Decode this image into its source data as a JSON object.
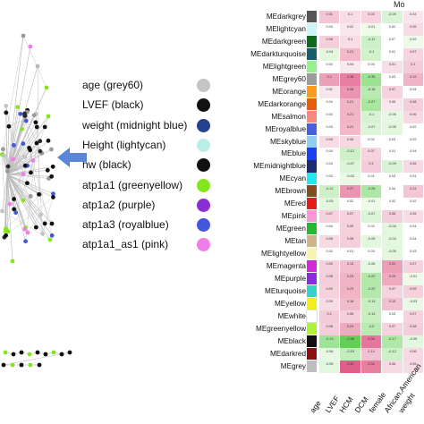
{
  "right_title": "Mo",
  "legend": [
    {
      "label": "age (grey60)",
      "color": "#c4c4c4"
    },
    {
      "label": "LVEF (black)",
      "color": "#111111"
    },
    {
      "label": "weight (midnight blue)",
      "color": "#23418f"
    },
    {
      "label": "Height (lightycan)",
      "color": "#b9efe6"
    },
    {
      "label": "hw (black)",
      "color": "#111111"
    },
    {
      "label": "atp1a1 (greenyellow)",
      "color": "#86e61e"
    },
    {
      "label": "atp1a2 (purple)",
      "color": "#8a2fd2"
    },
    {
      "label": "atp1a3 (royalblue)",
      "color": "#4457dc"
    },
    {
      "label": "atp1a1_as1 (pink)",
      "color": "#f07ee8"
    }
  ],
  "modules": [
    {
      "name": "MEdarkgrey",
      "color": "#555555"
    },
    {
      "name": "MElightcyan",
      "color": "#cdf5f7"
    },
    {
      "name": "MEdarkgreen",
      "color": "#0d6b1e"
    },
    {
      "name": "MEdarkturquoise",
      "color": "#17606a"
    },
    {
      "name": "MElightgreen",
      "color": "#95f08e"
    },
    {
      "name": "MEgrey60",
      "color": "#9c9c9c"
    },
    {
      "name": "MEorange",
      "color": "#ff9d1a"
    },
    {
      "name": "MEdarkorange",
      "color": "#e85d0c"
    },
    {
      "name": "MEsalmon",
      "color": "#f7897a"
    },
    {
      "name": "MEroyalblue",
      "color": "#4660e0"
    },
    {
      "name": "MEskyblue",
      "color": "#8fd0f2"
    },
    {
      "name": "MEblue",
      "color": "#1b3ff2"
    },
    {
      "name": "MEmidnightblue",
      "color": "#1c2a73"
    },
    {
      "name": "MEcyan",
      "color": "#22e6f0"
    },
    {
      "name": "MEbrown",
      "color": "#8b4a1e"
    },
    {
      "name": "MEred",
      "color": "#e61b1b"
    },
    {
      "name": "MEpink",
      "color": "#f59ad6"
    },
    {
      "name": "MEgreen",
      "color": "#24b92f"
    },
    {
      "name": "MEtan",
      "color": "#d2b48c"
    },
    {
      "name": "MElightyellow",
      "color": "#f6f3b4"
    },
    {
      "name": "MEmagenta",
      "color": "#d22ad2"
    },
    {
      "name": "MEpurple",
      "color": "#8a2be2"
    },
    {
      "name": "MEturquoise",
      "color": "#36d2c6"
    },
    {
      "name": "MEyellow",
      "color": "#f2ee1e"
    },
    {
      "name": "MEwhite",
      "color": "#ffffff"
    },
    {
      "name": "MEgreenyellow",
      "color": "#aef23a"
    },
    {
      "name": "MEblack",
      "color": "#111111"
    },
    {
      "name": "MEdarkred",
      "color": "#8b1010"
    },
    {
      "name": "MEgrey",
      "color": "#bdbdbd"
    }
  ],
  "traits": [
    "age",
    "LVEF",
    "HCM",
    "DCM",
    "female",
    "African.American",
    "weight"
  ],
  "heatmap_cells": [
    [
      {
        "v": "0.01",
        "c": "#f4c6d4"
      },
      {
        "v": "0.1",
        "c": "#f8dde6"
      },
      {
        "v": "0.03",
        "c": "#f6d3de"
      },
      {
        "v": "-0.09",
        "c": "#d9f3d6"
      },
      {
        "v": "0.03",
        "c": "#f9e6ec"
      }
    ],
    [
      {
        "v": "0.03",
        "c": "#ffffff"
      },
      {
        "v": "0.02",
        "c": "#f9e7ee"
      },
      {
        "v": "-0.01",
        "c": "#eefbe9"
      },
      {
        "v": "0.02",
        "c": "#ffffff"
      },
      {
        "v": "0.05",
        "c": "#f7dce5"
      }
    ],
    [
      {
        "v": "0.08",
        "c": "#f5cfdc"
      },
      {
        "v": "0.1",
        "c": "#f8dde6"
      },
      {
        "v": "-0.11",
        "c": "#ccf0c6"
      },
      {
        "v": "0.07",
        "c": "#ffffff"
      },
      {
        "v": "0.02",
        "c": "#eefbe9"
      }
    ],
    [
      {
        "v": "-0.04",
        "c": "#e3f7df"
      },
      {
        "v": "0.21",
        "c": "#f1b9ca"
      },
      {
        "v": "-0.1",
        "c": "#d2f2cc"
      },
      {
        "v": "0.01",
        "c": "#ffffff"
      },
      {
        "v": "0.07",
        "c": "#f6d5df"
      }
    ],
    [
      {
        "v": "0.04",
        "c": "#ffffff"
      },
      {
        "v": "0.04",
        "c": "#f9e8ee"
      },
      {
        "v": "0.03",
        "c": "#ffffff"
      },
      {
        "v": "0.01",
        "c": "#f7dfe7"
      },
      {
        "v": "0.1",
        "c": "#f4ccd9"
      }
    ],
    [
      {
        "v": "0.2",
        "c": "#ee9fb8"
      },
      {
        "v": "0.38",
        "c": "#e97ea2"
      },
      {
        "v": "-0.35",
        "c": "#9ce391"
      },
      {
        "v": "0.03",
        "c": "#ffffff"
      },
      {
        "v": "0.12",
        "c": "#f0b4c6"
      }
    ],
    [
      {
        "v": "0.01",
        "c": "#f9e6ec"
      },
      {
        "v": "0.28",
        "c": "#ec95b2"
      },
      {
        "v": "-0.18",
        "c": "#b8eab1"
      },
      {
        "v": "0.07",
        "c": "#f6d3de"
      },
      {
        "v": "0.04",
        "c": "#ffffff"
      }
    ],
    [
      {
        "v": "0.04",
        "c": "#ffffff"
      },
      {
        "v": "0.21",
        "c": "#f0b5c7"
      },
      {
        "v": "-0.27",
        "c": "#a9e6a0"
      },
      {
        "v": "0.05",
        "c": "#f9e6ec"
      },
      {
        "v": "0.08",
        "c": "#f4cfdb"
      }
    ],
    [
      {
        "v": "0.04",
        "c": "#ffffff"
      },
      {
        "v": "0.21",
        "c": "#f0b5c7"
      },
      {
        "v": "-0.1",
        "c": "#d8f3d3"
      },
      {
        "v": "-0.06",
        "c": "#e6f8e2"
      },
      {
        "v": "0.06",
        "c": "#f7d9e3"
      }
    ],
    [
      {
        "v": "0.03",
        "c": "#ffffff"
      },
      {
        "v": "0.21",
        "c": "#f1b9ca"
      },
      {
        "v": "-0.07",
        "c": "#dcf4d8"
      },
      {
        "v": "-0.05",
        "c": "#e3f7df"
      },
      {
        "v": "0.02",
        "c": "#ffffff"
      }
    ],
    [
      {
        "v": "0.05",
        "c": "#f7dce5"
      },
      {
        "v": "0.06",
        "c": "#f7d8e2"
      },
      {
        "v": "0.02",
        "c": "#ffffff"
      },
      {
        "v": "0.03",
        "c": "#ffffff"
      },
      {
        "v": "0.02",
        "c": "#ffffff"
      }
    ],
    [
      {
        "v": "0.04",
        "c": "#ffffff"
      },
      {
        "v": "-0.12",
        "c": "#cdf0c7"
      },
      {
        "v": "0.07",
        "c": "#f6d3de"
      },
      {
        "v": "0.01",
        "c": "#ffffff"
      },
      {
        "v": "0.04",
        "c": "#ffffff"
      }
    ],
    [
      {
        "v": "0.04",
        "c": "#ffffff"
      },
      {
        "v": "-0.07",
        "c": "#dcf4d8"
      },
      {
        "v": "0.1",
        "c": "#f4ccd9"
      },
      {
        "v": "-0.09",
        "c": "#d9f3d6"
      },
      {
        "v": "0.06",
        "c": "#f7d9e3"
      }
    ],
    [
      {
        "v": "0.03",
        "c": "#ffffff"
      },
      {
        "v": "-0.03",
        "c": "#e9f9e5"
      },
      {
        "v": "0.01",
        "c": "#ffffff"
      },
      {
        "v": "0.03",
        "c": "#ffffff"
      },
      {
        "v": "0.01",
        "c": "#ffffff"
      }
    ],
    [
      {
        "v": "-0.12",
        "c": "#cdf0c7"
      },
      {
        "v": "0.27",
        "c": "#ec95b2"
      },
      {
        "v": "-0.25",
        "c": "#aee7a5"
      },
      {
        "v": "0.04",
        "c": "#ffffff"
      },
      {
        "v": "0.11",
        "c": "#f3c6d4"
      }
    ],
    [
      {
        "v": "-0.05",
        "c": "#e3f7df"
      },
      {
        "v": "0.02",
        "c": "#ffffff"
      },
      {
        "v": "-0.01",
        "c": "#eefbe9"
      },
      {
        "v": "0.02",
        "c": "#ffffff"
      },
      {
        "v": "0.02",
        "c": "#ffffff"
      }
    ],
    [
      {
        "v": "0.07",
        "c": "#f6d3de"
      },
      {
        "v": "0.07",
        "c": "#f6d3de"
      },
      {
        "v": "-0.07",
        "c": "#dcf4d8"
      },
      {
        "v": "0.08",
        "c": "#f4cfdb"
      },
      {
        "v": "0.05",
        "c": "#f7dce5"
      }
    ],
    [
      {
        "v": "0.04",
        "c": "#ffffff"
      },
      {
        "v": "0.09",
        "c": "#f5d1dc"
      },
      {
        "v": "0.02",
        "c": "#ffffff"
      },
      {
        "v": "-0.04",
        "c": "#e3f7df"
      },
      {
        "v": "0.04",
        "c": "#ffffff"
      }
    ],
    [
      {
        "v": "0.06",
        "c": "#f7d9e3"
      },
      {
        "v": "0.08",
        "c": "#f4cfdb"
      },
      {
        "v": "-0.05",
        "c": "#e3f7df"
      },
      {
        "v": "-0.04",
        "c": "#e3f7df"
      },
      {
        "v": "0.04",
        "c": "#ffffff"
      }
    ],
    [
      {
        "v": "0.02",
        "c": "#ffffff"
      },
      {
        "v": "0.01",
        "c": "#ffffff"
      },
      {
        "v": "0.03",
        "c": "#ffffff"
      },
      {
        "v": "-0.05",
        "c": "#e3f7df"
      },
      {
        "v": "0.03",
        "c": "#ffffff"
      }
    ],
    [
      {
        "v": "0.09",
        "c": "#f5d1dc"
      },
      {
        "v": "0.13",
        "c": "#f2bfd0"
      },
      {
        "v": "-0.06",
        "c": "#e6f8e2"
      },
      {
        "v": "0.22",
        "c": "#ee9fb8"
      },
      {
        "v": "0.07",
        "c": "#f6d3de"
      }
    ],
    [
      {
        "v": "0.08",
        "c": "#f4cfdb"
      },
      {
        "v": "0.23",
        "c": "#f0b4c6"
      },
      {
        "v": "-0.22",
        "c": "#b3e8aa"
      },
      {
        "v": "0.19",
        "c": "#efaac0"
      },
      {
        "v": "-0.01",
        "c": "#eefbe9"
      }
    ],
    [
      {
        "v": "0.09",
        "c": "#f5d1dc"
      },
      {
        "v": "0.23",
        "c": "#f0b4c6"
      },
      {
        "v": "-0.22",
        "c": "#b3e8aa"
      },
      {
        "v": "0.07",
        "c": "#f6d3de"
      },
      {
        "v": "0.09",
        "c": "#f5d1dc"
      }
    ],
    [
      {
        "v": "0.05",
        "c": "#f7dce5"
      },
      {
        "v": "0.18",
        "c": "#f1bccc"
      },
      {
        "v": "-0.13",
        "c": "#c8eec1"
      },
      {
        "v": "0.15",
        "c": "#f2c1d1"
      },
      {
        "v": "-0.03",
        "c": "#e9f9e5"
      }
    ],
    [
      {
        "v": "0.1",
        "c": "#f4ccd9"
      },
      {
        "v": "0.08",
        "c": "#f4cfdb"
      },
      {
        "v": "-0.13",
        "c": "#c8eec1"
      },
      {
        "v": "0.03",
        "c": "#ffffff"
      },
      {
        "v": "0.07",
        "c": "#f6d3de"
      }
    ],
    [
      {
        "v": "0.08",
        "c": "#f4cfdb"
      },
      {
        "v": "0.24",
        "c": "#efaac0"
      },
      {
        "v": "-0.2",
        "c": "#b8eab1"
      },
      {
        "v": "0.07",
        "c": "#f6d3de"
      },
      {
        "v": "0.08",
        "c": "#f4cfdb"
      }
    ],
    [
      {
        "v": "-0.13",
        "c": "#9fe496"
      },
      {
        "v": "-0.38",
        "c": "#62d055"
      },
      {
        "v": "0.36",
        "c": "#e5779c"
      },
      {
        "v": "-0.17",
        "c": "#b0e8a8"
      },
      {
        "v": "-0.05",
        "c": "#e3f7df"
      }
    ],
    [
      {
        "v": "-0.06",
        "c": "#e6f8e2"
      },
      {
        "v": "-0.15",
        "c": "#c3edbd"
      },
      {
        "v": "0.14",
        "c": "#f2c1d1"
      },
      {
        "v": "-0.12",
        "c": "#cdf0c7"
      },
      {
        "v": "0.06",
        "c": "#f7d9e3"
      }
    ],
    [
      {
        "v": "-0.05",
        "c": "#e3f7df"
      },
      {
        "v": "0.46",
        "c": "#e05f8a"
      },
      {
        "v": "0.34",
        "c": "#e87f9f"
      },
      {
        "v": "0.06",
        "c": "#f7d9e3"
      },
      {
        "v": "0.05",
        "c": "#f7dce5"
      }
    ]
  ],
  "colors": {
    "arrow": "#5a86d8",
    "edge": "#b9b9b9"
  }
}
